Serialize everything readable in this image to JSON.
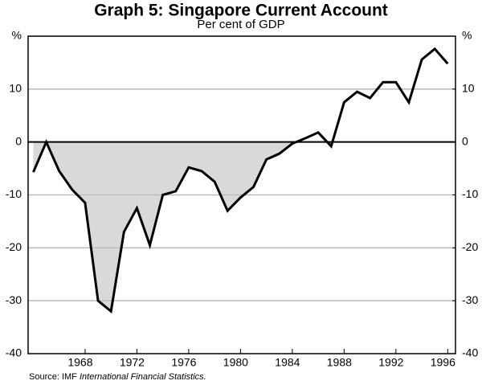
{
  "chart_data": {
    "type": "line",
    "title": "Graph 5: Singapore Current Account",
    "subtitle": "Per cent of GDP",
    "source": "Source: IMF",
    "source_italic": "International Financial Statistics.",
    "x": [
      1964,
      1965,
      1966,
      1967,
      1968,
      1969,
      1970,
      1971,
      1972,
      1973,
      1974,
      1975,
      1976,
      1977,
      1978,
      1979,
      1980,
      1981,
      1982,
      1983,
      1984,
      1985,
      1986,
      1987,
      1988,
      1989,
      1990,
      1991,
      1992,
      1993,
      1994,
      1995,
      1996
    ],
    "series": [
      {
        "name": "Current account",
        "color": "#000000",
        "values": [
          -5.7,
          0,
          -5.5,
          -9,
          -11.5,
          -30,
          -32,
          -17,
          -12.5,
          -19.5,
          -10,
          -9.3,
          -4.8,
          -5.5,
          -7.5,
          -13,
          -10.5,
          -8.5,
          -3.3,
          -2.2,
          -0.3,
          0.7,
          1.8,
          -0.8,
          7.5,
          9.5,
          8.3,
          11.3,
          11.3,
          7.5,
          15.6,
          17.6,
          14.8
        ]
      }
    ],
    "fill_below_zero": "#d9d9d9",
    "xlim": [
      1963.6,
      1996.6
    ],
    "xticks": [
      1968,
      1972,
      1976,
      1980,
      1984,
      1988,
      1992,
      1996
    ],
    "ylim": [
      -40,
      20
    ],
    "yticks": [
      -40,
      -30,
      -20,
      -10,
      0,
      10,
      {
        "value": 20,
        "label": "%"
      }
    ],
    "y2lim": [
      -40,
      20
    ],
    "y2ticks": [
      -40,
      -30,
      -20,
      -10,
      0,
      10,
      {
        "value": 20,
        "label": "%"
      }
    ],
    "grid": true
  }
}
